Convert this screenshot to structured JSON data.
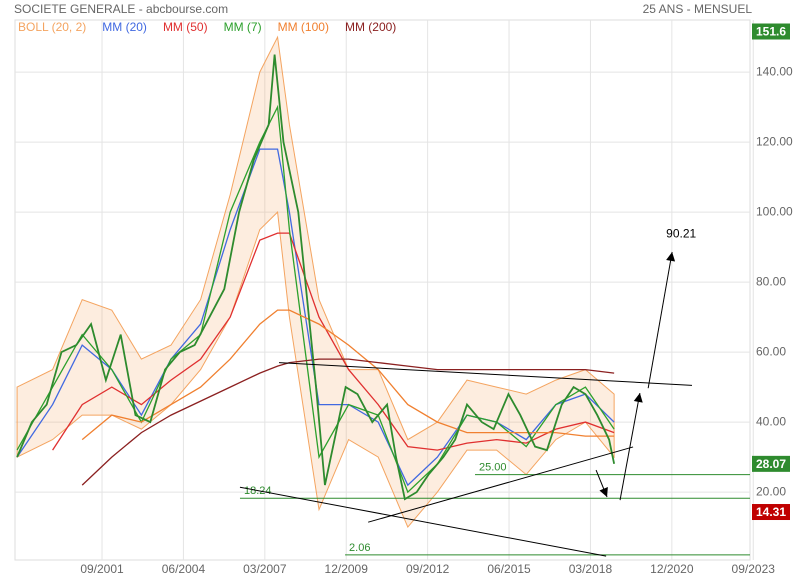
{
  "chart_data": {
    "type": "stock",
    "title": "SOCIETE GENERALE - abcbourse.com",
    "subtitle": "25 ANS - MENSUEL",
    "xlim": [
      1998.73,
      2023.56
    ],
    "ylim": [
      0.6,
      160.6
    ],
    "xticks": [
      {
        "value": 2001.67,
        "label": "09/2001"
      },
      {
        "value": 2004.42,
        "label": "06/2004"
      },
      {
        "value": 2007.17,
        "label": "03/2007"
      },
      {
        "value": 2009.92,
        "label": "12/2009"
      },
      {
        "value": 2012.67,
        "label": "09/2012"
      },
      {
        "value": 2015.42,
        "label": "06/2015"
      },
      {
        "value": 2018.17,
        "label": "03/2018"
      },
      {
        "value": 2020.92,
        "label": "12/2020"
      },
      {
        "value": 2023.67,
        "label": "09/2023"
      }
    ],
    "yticks": [
      {
        "value": 20,
        "label": "20.00"
      },
      {
        "value": 40,
        "label": "40.00"
      },
      {
        "value": 60,
        "label": "60.00"
      },
      {
        "value": 80,
        "label": "80.00"
      },
      {
        "value": 100,
        "label": "100.00"
      },
      {
        "value": 120,
        "label": "120.00"
      },
      {
        "value": 140,
        "label": "140.00"
      }
    ],
    "price": {
      "name": "SOCIETE GENERALE",
      "color": "#2e8b2e",
      "x": [
        1998.8,
        1999.3,
        1999.8,
        2000.3,
        2000.8,
        2001.3,
        2001.8,
        2002.3,
        2002.8,
        2003.3,
        2003.8,
        2004.3,
        2004.8,
        2005.3,
        2005.8,
        2006.3,
        2006.8,
        2007.3,
        2007.5,
        2007.8,
        2008.3,
        2008.6,
        2008.9,
        2009.2,
        2009.6,
        2009.9,
        2010.3,
        2010.8,
        2011.3,
        2011.6,
        2011.9,
        2012.3,
        2012.7,
        2013.2,
        2013.6,
        2014.0,
        2014.5,
        2014.9,
        2015.4,
        2015.8,
        2016.3,
        2016.7,
        2017.2,
        2017.6,
        2018.0,
        2018.4,
        2018.8,
        2018.97
      ],
      "values": [
        30,
        40,
        45,
        60,
        62,
        68,
        52,
        65,
        42,
        40,
        55,
        60,
        62,
        70,
        78,
        100,
        115,
        125,
        145,
        120,
        100,
        75,
        50,
        22,
        38,
        50,
        48,
        40,
        45,
        30,
        18,
        20,
        25,
        30,
        35,
        45,
        40,
        38,
        48,
        42,
        33,
        32,
        45,
        50,
        48,
        42,
        35,
        28.07
      ]
    },
    "ma_x": [
      1998.8,
      2000,
      2001,
      2002,
      2003,
      2004,
      2005,
      2006,
      2007,
      2007.6,
      2008,
      2009,
      2010,
      2011,
      2012,
      2013,
      2014,
      2015,
      2016,
      2017,
      2018,
      2018.97
    ],
    "bollinger": {
      "name": "BOLL (20, 2)",
      "color": "#f4a460",
      "upper": [
        50,
        55,
        75,
        72,
        58,
        62,
        75,
        105,
        140,
        150,
        125,
        75,
        55,
        55,
        35,
        40,
        52,
        50,
        48,
        52,
        55,
        48
      ],
      "lower": [
        30,
        35,
        42,
        42,
        38,
        45,
        55,
        70,
        95,
        100,
        70,
        15,
        35,
        30,
        10,
        20,
        32,
        32,
        25,
        35,
        40,
        30
      ]
    },
    "series": [
      {
        "name": "MM (20)",
        "color": "#4169e1",
        "values": [
          30,
          45,
          62,
          55,
          42,
          58,
          68,
          95,
          118,
          118,
          100,
          45,
          45,
          40,
          22,
          30,
          42,
          40,
          35,
          45,
          48,
          40
        ]
      },
      {
        "name": "MM (50)",
        "color": "#e03030",
        "values": [
          null,
          32,
          45,
          50,
          45,
          52,
          58,
          70,
          92,
          94,
          94,
          70,
          55,
          45,
          33,
          32,
          34,
          35,
          34,
          38,
          40,
          37
        ]
      },
      {
        "name": "MM (7)",
        "color": "#2ca02c",
        "values": [
          32,
          50,
          65,
          55,
          40,
          58,
          65,
          100,
          120,
          130,
          95,
          30,
          45,
          42,
          20,
          28,
          42,
          40,
          33,
          45,
          50,
          38
        ]
      },
      {
        "name": "MM (100)",
        "color": "#f08030",
        "values": [
          null,
          null,
          35,
          42,
          40,
          45,
          50,
          58,
          68,
          72,
          72,
          68,
          62,
          55,
          45,
          40,
          37,
          37,
          37,
          37,
          36,
          36
        ]
      },
      {
        "name": "MM (200)",
        "color": "#8b2020",
        "values": [
          null,
          null,
          22,
          30,
          37,
          42,
          46,
          50,
          54,
          56,
          57,
          58,
          58,
          57,
          56,
          55,
          55,
          55,
          55,
          55,
          55,
          54
        ]
      }
    ],
    "trendlines": [
      {
        "x": [
          2007.65,
          2021.6
        ],
        "y": [
          57,
          50.5
        ]
      },
      {
        "x": [
          2010.66,
          2019.61
        ],
        "y": [
          11.4,
          32.9
        ]
      },
      {
        "x": [
          2006.33,
          2018.7
        ],
        "y": [
          21.4,
          1.7
        ]
      },
      {
        "x": [
          2020.12,
          2020.93
        ],
        "y": [
          49.7,
          88.6
        ]
      },
      {
        "x": [
          2019.17,
          2019.84
        ],
        "y": [
          17.7,
          48.3
        ]
      },
      {
        "x": [
          2018.36,
          2018.73
        ],
        "y": [
          26.3,
          18.6
        ]
      }
    ],
    "target": {
      "label": "90.21",
      "x": 2020.93,
      "y": 90.21
    },
    "levels": [
      {
        "value": 25.0,
        "label": "25.00",
        "x": 2014.27
      },
      {
        "value": 18.24,
        "label": "18.24",
        "x": 2006.33
      },
      {
        "value": 2.06,
        "label": "2.06",
        "x": 2009.88
      }
    ],
    "price_labels": [
      {
        "value": 151.6,
        "label": "151.6",
        "color": "#2e8b2e"
      },
      {
        "value": 28.07,
        "label": "28.07",
        "color": "#2e8b2e"
      },
      {
        "value": 14.31,
        "label": "14.31",
        "color": "#c00000"
      }
    ]
  }
}
